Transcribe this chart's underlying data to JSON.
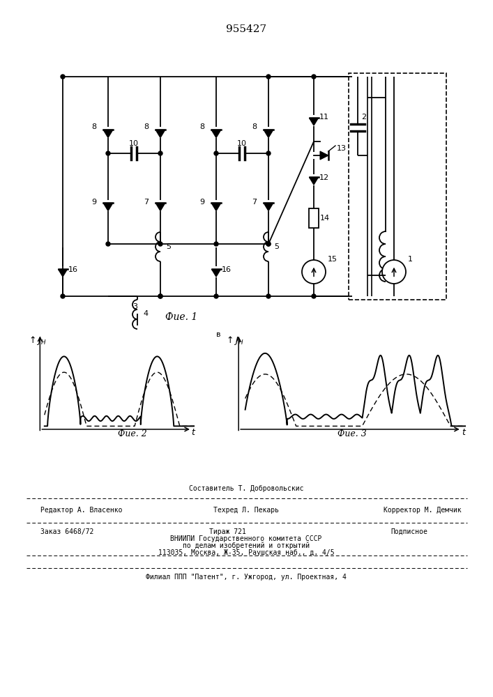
{
  "title": "955427",
  "background_color": "#ffffff",
  "text_color": "#000000",
  "footer": {
    "line1_left": "Редактор А. Власенко",
    "line1_center_top": "Составитель Т. Добровольскис",
    "line1_center_bot": "Техред Л. Пекарь",
    "line1_right": "Корректор М. Демчик",
    "line2_left": "Заказ 6468/72",
    "line2_center": "Тираж 721",
    "line2_right": "Подписное",
    "line3": "ВНИИПИ Государственного комитета СССР",
    "line4": "по делам изобретений и открытий",
    "line5": "113035, Москва, Ж-35, Раушская наб., д. 4/5",
    "line6": "Филиал ППП \"Патент\", г. Ужгород, ул. Проектная, 4"
  },
  "fig1_caption": "Фие. 1",
  "fig2_caption": "Фие. 2",
  "fig3_caption": "Фие. 3"
}
